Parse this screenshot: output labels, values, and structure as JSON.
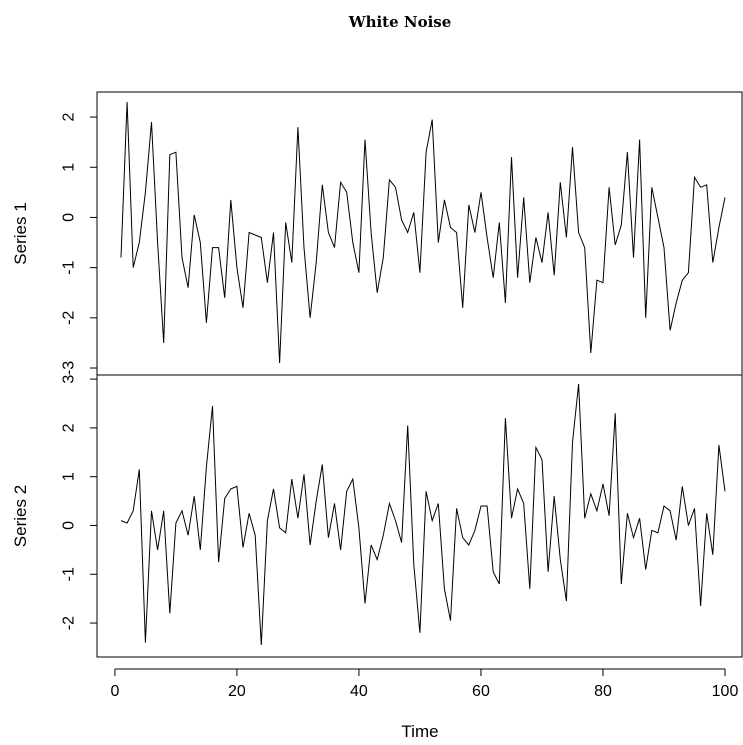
{
  "chart_data": {
    "type": "line",
    "title": "White Noise",
    "xlabel": "Time",
    "xlim": [
      1,
      100
    ],
    "x_ticks": [
      0,
      20,
      40,
      60,
      80,
      100
    ],
    "x": [
      1,
      2,
      3,
      4,
      5,
      6,
      7,
      8,
      9,
      10,
      11,
      12,
      13,
      14,
      15,
      16,
      17,
      18,
      19,
      20,
      21,
      22,
      23,
      24,
      25,
      26,
      27,
      28,
      29,
      30,
      31,
      32,
      33,
      34,
      35,
      36,
      37,
      38,
      39,
      40,
      41,
      42,
      43,
      44,
      45,
      46,
      47,
      48,
      49,
      50,
      51,
      52,
      53,
      54,
      55,
      56,
      57,
      58,
      59,
      60,
      61,
      62,
      63,
      64,
      65,
      66,
      67,
      68,
      69,
      70,
      71,
      72,
      73,
      74,
      75,
      76,
      77,
      78,
      79,
      80,
      81,
      82,
      83,
      84,
      85,
      86,
      87,
      88,
      89,
      90,
      91,
      92,
      93,
      94,
      95,
      96,
      97,
      98,
      99,
      100
    ],
    "panels": [
      {
        "ylabel": "Series 1",
        "ylim": [
          -2.9,
          2.3
        ],
        "y_ticks": [
          -3,
          -2,
          -1,
          0,
          1,
          2
        ],
        "values": [
          -0.8,
          2.3,
          -1.0,
          -0.5,
          0.5,
          1.9,
          -0.5,
          -2.5,
          1.25,
          1.3,
          -0.8,
          -1.4,
          0.05,
          -0.5,
          -2.1,
          -0.6,
          -0.6,
          -1.6,
          0.35,
          -1.0,
          -1.8,
          -0.3,
          -0.35,
          -0.4,
          -1.3,
          -0.3,
          -2.9,
          -0.1,
          -0.9,
          1.8,
          -0.6,
          -2.0,
          -0.9,
          0.65,
          -0.3,
          -0.6,
          0.7,
          0.5,
          -0.5,
          -1.1,
          1.55,
          -0.3,
          -1.5,
          -0.8,
          0.75,
          0.6,
          -0.05,
          -0.3,
          0.1,
          -1.1,
          1.3,
          1.95,
          -0.5,
          0.35,
          -0.2,
          -0.3,
          -1.8,
          0.25,
          -0.3,
          0.5,
          -0.4,
          -1.2,
          -0.1,
          -1.7,
          1.2,
          -1.2,
          0.4,
          -1.3,
          -0.4,
          -0.9,
          0.1,
          -1.15,
          0.7,
          -0.4,
          1.4,
          -0.3,
          -0.6,
          -2.7,
          -1.25,
          -1.3,
          0.6,
          -0.55,
          -0.15,
          1.3,
          -0.8,
          1.55,
          -2.0,
          0.6,
          0.0,
          -0.6,
          -2.25,
          -1.7,
          -1.25,
          -1.1,
          0.8,
          0.6,
          0.65,
          -0.9,
          -0.2,
          0.4
        ]
      },
      {
        "ylabel": "Series 2",
        "ylim": [
          -2.45,
          2.9
        ],
        "y_ticks": [
          -2,
          -1,
          0,
          1,
          2,
          3
        ],
        "values": [
          0.1,
          0.05,
          0.3,
          1.15,
          -2.4,
          0.3,
          -0.5,
          0.3,
          -1.8,
          0.05,
          0.3,
          -0.2,
          0.6,
          -0.5,
          1.2,
          2.45,
          -0.75,
          0.55,
          0.75,
          0.8,
          -0.45,
          0.25,
          -0.2,
          -2.45,
          0.1,
          0.75,
          -0.05,
          -0.15,
          0.95,
          0.15,
          1.05,
          -0.4,
          0.5,
          1.25,
          -0.25,
          0.45,
          -0.5,
          0.7,
          0.95,
          -0.05,
          -1.6,
          -0.4,
          -0.7,
          -0.2,
          0.45,
          0.1,
          -0.35,
          2.05,
          -0.8,
          -2.2,
          0.7,
          0.1,
          0.45,
          -1.3,
          -1.95,
          0.35,
          -0.25,
          -0.4,
          -0.1,
          0.4,
          0.4,
          -0.95,
          -1.2,
          2.2,
          0.15,
          0.75,
          0.45,
          -1.3,
          1.6,
          1.35,
          -0.95,
          0.6,
          -0.7,
          -1.55,
          1.7,
          2.9,
          0.15,
          0.65,
          0.3,
          0.85,
          0.2,
          2.3,
          -1.2,
          0.25,
          -0.25,
          0.15,
          -0.9,
          -0.1,
          -0.15,
          0.4,
          0.3,
          -0.3,
          0.8,
          0.0,
          0.35,
          -1.65,
          0.25,
          -0.6,
          1.65,
          0.7
        ]
      }
    ]
  }
}
